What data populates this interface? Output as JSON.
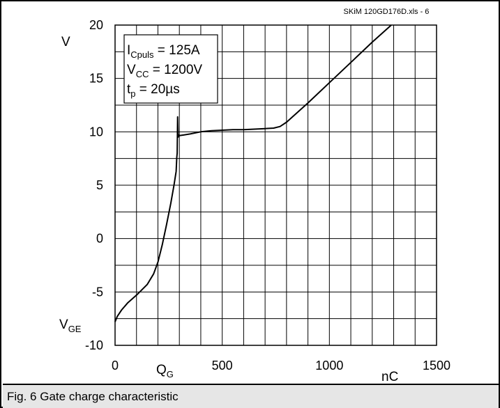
{
  "file_label": "SKiM 120GD176D.xls - 6",
  "caption": "Fig. 6 Gate charge characteristic",
  "chart_data": {
    "type": "line",
    "title": "",
    "xlabel": "Q",
    "xlabel_sub": "G",
    "xunit": "nC",
    "ylabel": "V",
    "ylabel_name": "V",
    "ylabel_sub": "GE",
    "xlim": [
      0,
      1500
    ],
    "ylim": [
      -10,
      20
    ],
    "xticks": [
      0,
      500,
      1000,
      1500
    ],
    "yticks": [
      20,
      15,
      10,
      5,
      0,
      -5,
      -10
    ],
    "grid": true,
    "annotation": [
      {
        "main": "I",
        "sub": "Cpuls",
        "rest": " = 125A"
      },
      {
        "main": "V",
        "sub": "CC",
        "rest": " = 1200V"
      },
      {
        "main": "t",
        "sub": "p",
        "rest": " = 20µs"
      }
    ],
    "series": [
      {
        "x": [
          0,
          10,
          30,
          60,
          100,
          150,
          180,
          200,
          220,
          240,
          260,
          275,
          285,
          288,
          290,
          292,
          294,
          296,
          298,
          300,
          320,
          350,
          400,
          450,
          500,
          550,
          600,
          650,
          700,
          740,
          770,
          800,
          900,
          1000,
          1100,
          1200,
          1300
        ],
        "y": [
          -7.8,
          -7.3,
          -6.7,
          -6.0,
          -5.3,
          -4.3,
          -3.3,
          -2.2,
          -0.6,
          1.3,
          3.3,
          5.0,
          6.3,
          7.6,
          8.0,
          11.4,
          9.5,
          9.6,
          9.7,
          9.65,
          9.7,
          9.8,
          10.0,
          10.1,
          10.15,
          10.2,
          10.2,
          10.25,
          10.3,
          10.35,
          10.5,
          10.9,
          12.7,
          14.6,
          16.5,
          18.4,
          20.2
        ]
      }
    ]
  }
}
